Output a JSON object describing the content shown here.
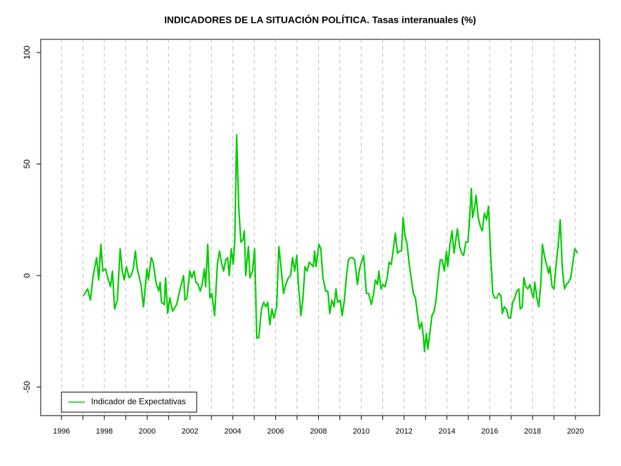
{
  "chart_data": {
    "type": "line",
    "title": "INDICADORES DE LA SITUACIÓN POLÍTICA. Tasas interanuales (%)",
    "x": [
      1997.03,
      1997.22,
      1997.35,
      1997.48,
      1997.64,
      1997.74,
      1997.84,
      1997.93,
      1998.06,
      1998.16,
      1998.29,
      1998.38,
      1998.48,
      1998.61,
      1998.74,
      1998.84,
      1998.93,
      1999.03,
      1999.16,
      1999.25,
      1999.35,
      1999.45,
      1999.54,
      1999.71,
      1999.83,
      1999.99,
      2000.06,
      2000.19,
      2000.28,
      2000.41,
      2000.54,
      2000.61,
      2000.67,
      2000.8,
      2000.86,
      2000.96,
      2001.06,
      2001.19,
      2001.38,
      2001.54,
      2001.7,
      2001.77,
      2001.86,
      2001.99,
      2002.09,
      2002.19,
      2002.28,
      2002.38,
      2002.48,
      2002.57,
      2002.67,
      2002.73,
      2002.83,
      2002.93,
      2003.02,
      2003.15,
      2003.28,
      2003.38,
      2003.47,
      2003.57,
      2003.67,
      2003.76,
      2003.83,
      2003.93,
      2004.02,
      2004.09,
      2004.18,
      2004.28,
      2004.38,
      2004.47,
      2004.54,
      2004.6,
      2004.73,
      2004.8,
      2004.92,
      2005.02,
      2005.12,
      2005.21,
      2005.34,
      2005.44,
      2005.54,
      2005.63,
      2005.73,
      2005.83,
      2005.92,
      2006.05,
      2006.15,
      2006.24,
      2006.37,
      2006.47,
      2006.6,
      2006.7,
      2006.79,
      2006.89,
      2006.99,
      2007.05,
      2007.18,
      2007.28,
      2007.37,
      2007.47,
      2007.57,
      2007.66,
      2007.76,
      2007.82,
      2007.89,
      2008.02,
      2008.11,
      2008.21,
      2008.34,
      2008.44,
      2008.53,
      2008.63,
      2008.73,
      2008.82,
      2008.89,
      2009.02,
      2009.11,
      2009.21,
      2009.31,
      2009.4,
      2009.5,
      2009.6,
      2009.69,
      2009.82,
      2009.92,
      2010.01,
      2010.11,
      2010.24,
      2010.34,
      2010.47,
      2010.56,
      2010.66,
      2010.76,
      2010.82,
      2010.92,
      2011.01,
      2011.11,
      2011.21,
      2011.3,
      2011.4,
      2011.5,
      2011.59,
      2011.69,
      2011.79,
      2011.88,
      2011.95,
      2012.04,
      2012.14,
      2012.24,
      2012.33,
      2012.43,
      2012.53,
      2012.62,
      2012.72,
      2012.82,
      2012.91,
      2012.95,
      2013.04,
      2013.11,
      2013.2,
      2013.3,
      2013.4,
      2013.49,
      2013.59,
      2013.69,
      2013.78,
      2013.88,
      2013.98,
      2014.04,
      2014.14,
      2014.24,
      2014.33,
      2014.43,
      2014.49,
      2014.59,
      2014.69,
      2014.78,
      2014.88,
      2014.98,
      2015.07,
      2015.14,
      2015.2,
      2015.3,
      2015.36,
      2015.46,
      2015.56,
      2015.65,
      2015.75,
      2015.85,
      2015.94,
      2016.04,
      2016.14,
      2016.23,
      2016.33,
      2016.43,
      2016.52,
      2016.59,
      2016.68,
      2016.78,
      2016.88,
      2016.97,
      2017.07,
      2017.17,
      2017.26,
      2017.36,
      2017.42,
      2017.52,
      2017.59,
      2017.68,
      2017.78,
      2017.88,
      2017.97,
      2018.04,
      2018.1,
      2018.2,
      2018.29,
      2018.39,
      2018.46,
      2018.55,
      2018.65,
      2018.75,
      2018.81,
      2018.91,
      2019.0,
      2019.1,
      2019.2,
      2019.29,
      2019.39,
      2019.49,
      2019.58,
      2019.68,
      2019.78,
      2019.87,
      2019.97,
      2020.1
    ],
    "series": [
      {
        "name": "Indicador de Expectativas",
        "color": "#00cd00",
        "values": [
          -9,
          -6,
          -11,
          0,
          8,
          -2,
          14,
          2,
          3,
          -1,
          -5,
          2,
          -15,
          -11,
          12,
          2,
          -2,
          4,
          -1,
          0,
          3,
          11,
          3,
          -4,
          -14,
          3,
          -2,
          8,
          6,
          -3,
          -7,
          -3,
          -12,
          -13,
          -1,
          -17,
          -10,
          -16,
          -13,
          -6,
          0,
          -11,
          -10,
          2,
          -1,
          2,
          -3,
          -4,
          -7,
          -4,
          3,
          -5,
          14,
          -10,
          -8,
          -18,
          5,
          11,
          6,
          2,
          7,
          8,
          0,
          12,
          5,
          15,
          63,
          30,
          15,
          16,
          20,
          0,
          13,
          -1,
          2,
          12,
          -28,
          -28,
          -15,
          -12,
          -14,
          -12,
          -22,
          -15,
          -19,
          -14,
          13,
          5,
          -8,
          -4,
          -1,
          0,
          8,
          2,
          9,
          -2,
          -18,
          -10,
          4,
          2,
          6,
          5,
          4,
          11,
          4,
          14,
          12,
          -1,
          -7,
          -7,
          -17,
          -11,
          -14,
          -6,
          -12,
          -11,
          -18,
          -11,
          0,
          7,
          8,
          8,
          7,
          -4,
          3,
          6,
          9,
          -8,
          -8,
          -13,
          -9,
          -2,
          -4,
          2,
          -6,
          -4,
          -5,
          -1,
          6,
          5,
          12,
          19,
          10,
          11,
          11,
          26,
          18,
          14,
          5,
          -1,
          -8,
          -10,
          -17,
          -24,
          -21,
          -28,
          -34,
          -26,
          -33,
          -26,
          -18,
          -16,
          -11,
          -1,
          7,
          7,
          2,
          11,
          4,
          14,
          20,
          10,
          17,
          21,
          13,
          10,
          9,
          15,
          15,
          27,
          39,
          26,
          31,
          36,
          26,
          22,
          20,
          28,
          25,
          31,
          10,
          -8,
          -10,
          -10,
          -8,
          -9,
          -17,
          -14,
          -15,
          -19,
          -19,
          -12,
          -10,
          -7,
          -6,
          -15,
          -14,
          -1,
          -5,
          -6,
          -4,
          -8,
          -10,
          -3,
          -10,
          -14,
          -3,
          14,
          9,
          5,
          1,
          4,
          -5,
          -6,
          5,
          14,
          25,
          3,
          -6,
          -4,
          -3,
          -1,
          5,
          12,
          10
        ]
      }
    ],
    "xlim": [
      1995.03,
      2021.13
    ],
    "xticks": [
      1996,
      1998,
      2000,
      2002,
      2004,
      2006,
      2008,
      2010,
      2012,
      2014,
      2016,
      2018,
      2020
    ],
    "minor_xticks": [
      1997,
      1999,
      2001,
      2003,
      2005,
      2007,
      2009,
      2011,
      2013,
      2015,
      2017,
      2019
    ],
    "ylim": [
      -62.8,
      105.9
    ],
    "yticks": [
      -50,
      0,
      50,
      100
    ],
    "grid": "x",
    "legend": "bottomleft"
  }
}
